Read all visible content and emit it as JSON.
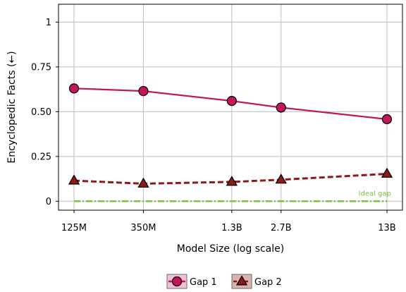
{
  "chart_data": {
    "type": "line",
    "xlabel": "Model Size (log scale)",
    "ylabel": "Encyclopedic Facts (←)",
    "x_scale": "log",
    "x_values_params": [
      125000000,
      350000000,
      1300000000,
      2700000000,
      13000000000
    ],
    "categories": [
      "125M",
      "350M",
      "1.3B",
      "2.7B",
      "13B"
    ],
    "ylim": [
      -0.05,
      1.1
    ],
    "yticks": [
      0,
      0.25,
      0.5,
      0.75,
      1
    ],
    "ytick_labels": [
      "0",
      "0.25",
      "0.50",
      "0.75",
      "1"
    ],
    "grid": true,
    "legend_position": "bottom-center",
    "series": [
      {
        "name": "Gap 1",
        "values": [
          0.63,
          0.615,
          0.56,
          0.523,
          0.458
        ],
        "color": "#c2185b",
        "line_style": "solid",
        "marker": "circle"
      },
      {
        "name": "Gap 2",
        "values": [
          0.115,
          0.098,
          0.108,
          0.12,
          0.153
        ],
        "color": "#8b1a1a",
        "line_style": "dashed",
        "marker": "triangle"
      }
    ],
    "reference_line": {
      "label": "Ideal gap",
      "value": 0,
      "color": "#7cc142",
      "line_style": "dash-dot"
    }
  }
}
